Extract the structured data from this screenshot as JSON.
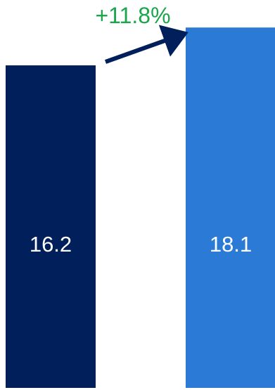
{
  "chart_data": {
    "type": "bar",
    "categories": [
      "",
      ""
    ],
    "values": [
      16.2,
      18.1
    ],
    "data_labels": [
      "16.2",
      "18.1"
    ],
    "colors": [
      "#001f5b",
      "#2b7bd6"
    ],
    "ylim": [
      0,
      18.6
    ],
    "annotation": {
      "text": "+11.8%",
      "color": "#1aa64a",
      "arrow_color": "#001f5b"
    },
    "title": "",
    "xlabel": "",
    "ylabel": "",
    "grid": false,
    "legend": "none"
  }
}
